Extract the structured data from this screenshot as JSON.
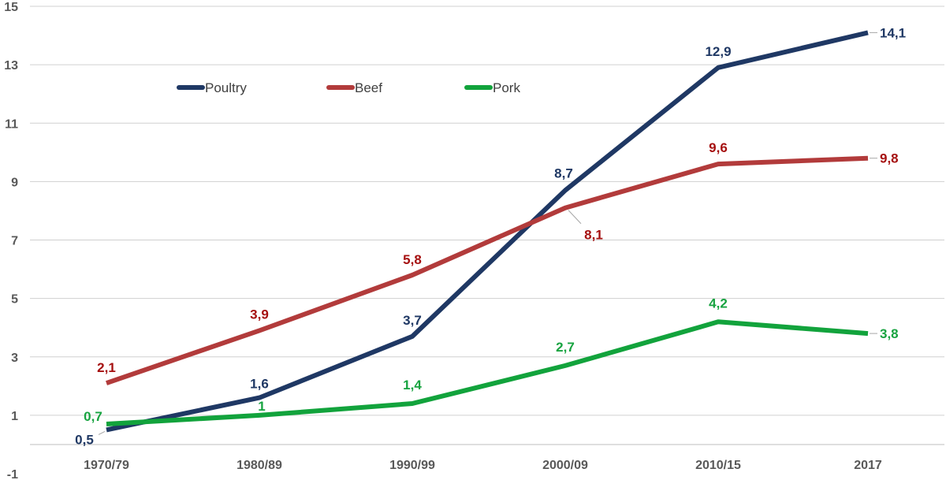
{
  "chart_data": {
    "type": "line",
    "title": "",
    "xlabel": "",
    "ylabel": "",
    "categories": [
      "1970/79",
      "1980/89",
      "1990/99",
      "2000/09",
      "2010/15",
      "2017"
    ],
    "ylim": [
      -1,
      15
    ],
    "yticks": [
      "-1",
      "1",
      "3",
      "5",
      "7",
      "9",
      "11",
      "13",
      "15"
    ],
    "grid": true,
    "legend_position": "top-left",
    "series": [
      {
        "name": "Poultry",
        "color": "#1f3864",
        "values": [
          0.5,
          1.6,
          3.7,
          8.7,
          12.9,
          14.1
        ],
        "labels": [
          "0,5",
          "1,6",
          "3,7",
          "8,7",
          "12,9",
          "14,1"
        ]
      },
      {
        "name": "Beef",
        "color": "#b23b3b",
        "label_color": "#a50f0f",
        "values": [
          2.1,
          3.9,
          5.8,
          8.1,
          9.6,
          9.8
        ],
        "labels": [
          "2,1",
          "3,9",
          "5,8",
          "8,1",
          "9,6",
          "9,8"
        ]
      },
      {
        "name": "Pork",
        "color": "#12a33c",
        "label_color": "#17a340",
        "values": [
          0.7,
          1.0,
          1.4,
          2.7,
          4.2,
          3.8
        ],
        "labels": [
          "0,7",
          "1",
          "1,4",
          "2,7",
          "4,2",
          "3,8"
        ]
      }
    ]
  }
}
